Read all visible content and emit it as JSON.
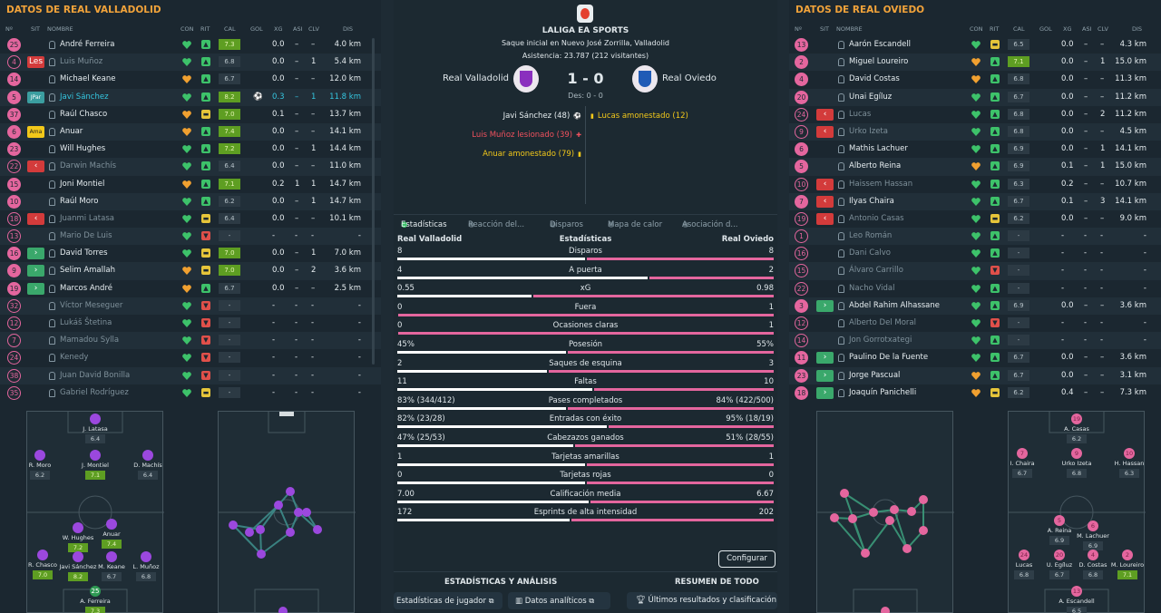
{
  "left": {
    "title": "DATOS DE REAL VALLADOLID",
    "headers": {
      "num": "Nº",
      "sit": "SIT",
      "name": "NOMBRE",
      "con": "CON",
      "rit": "RIT",
      "cal": "CAL",
      "gol": "GOL",
      "xg": "XG",
      "asi": "ASI",
      "clv": "CLV",
      "dis": "DIS"
    },
    "players": [
      {
        "num": "25",
        "sit": "",
        "name": "André Ferreira",
        "rit": "up",
        "cal": "7.3",
        "gol": "",
        "xg": "0.0",
        "asi": "–",
        "clv": "–",
        "dis": "4.0 km",
        "hl": true,
        "dim": false
      },
      {
        "num": "4",
        "sit": "Les",
        "name": "Luis Muñoz",
        "rit": "up",
        "cal": "6.8",
        "gol": "",
        "xg": "0.0",
        "asi": "–",
        "clv": "1",
        "dis": "5.4 km",
        "hl": false,
        "dim": true
      },
      {
        "num": "14",
        "sit": "",
        "name": "Michael Keane",
        "rit": "up",
        "cal": "6.7",
        "gol": "",
        "xg": "0.0",
        "asi": "–",
        "clv": "–",
        "dis": "12.0 km",
        "hl": false,
        "dim": false
      },
      {
        "num": "5",
        "sit": "JPar",
        "name": "Javi Sánchez",
        "rit": "up",
        "cal": "8.2",
        "gol": "⚽",
        "xg": "0.3",
        "asi": "–",
        "clv": "1",
        "dis": "11.8 km",
        "hl": true,
        "dim": false
      },
      {
        "num": "37",
        "sit": "",
        "name": "Raúl Chasco",
        "rit": "mid",
        "cal": "7.0",
        "gol": "",
        "xg": "0.1",
        "asi": "–",
        "clv": "–",
        "dis": "13.7 km",
        "hl": true,
        "dim": false
      },
      {
        "num": "6",
        "sit": "Ama",
        "name": "Anuar",
        "rit": "up",
        "cal": "7.4",
        "gol": "",
        "xg": "0.0",
        "asi": "–",
        "clv": "–",
        "dis": "14.1 km",
        "hl": true,
        "dim": false
      },
      {
        "num": "23",
        "sit": "",
        "name": "Will Hughes",
        "rit": "up",
        "cal": "7.2",
        "gol": "",
        "xg": "0.0",
        "asi": "–",
        "clv": "1",
        "dis": "14.4 km",
        "hl": true,
        "dim": false
      },
      {
        "num": "22",
        "sit": "out",
        "name": "Darwin Machís",
        "rit": "up",
        "cal": "6.4",
        "gol": "",
        "xg": "0.0",
        "asi": "–",
        "clv": "–",
        "dis": "11.0 km",
        "hl": false,
        "dim": true
      },
      {
        "num": "15",
        "sit": "",
        "name": "Joni Montiel",
        "rit": "up",
        "cal": "7.1",
        "gol": "",
        "xg": "0.2",
        "asi": "1",
        "clv": "1",
        "dis": "14.7 km",
        "hl": true,
        "dim": false
      },
      {
        "num": "10",
        "sit": "",
        "name": "Raúl Moro",
        "rit": "up",
        "cal": "6.2",
        "gol": "",
        "xg": "0.0",
        "asi": "–",
        "clv": "1",
        "dis": "14.7 km",
        "hl": false,
        "dim": false
      },
      {
        "num": "18",
        "sit": "out",
        "name": "Juanmi Latasa",
        "rit": "mid",
        "cal": "6.4",
        "gol": "",
        "xg": "0.0",
        "asi": "–",
        "clv": "–",
        "dis": "10.1 km",
        "hl": false,
        "dim": true
      },
      {
        "num": "13",
        "sit": "",
        "name": "Mario De Luis",
        "rit": "down",
        "cal": "-",
        "gol": "",
        "xg": "-",
        "asi": "-",
        "clv": "-",
        "dis": "-",
        "hl": false,
        "dim": true
      },
      {
        "num": "16",
        "sit": "in",
        "name": "David Torres",
        "rit": "mid",
        "cal": "7.0",
        "gol": "",
        "xg": "0.0",
        "asi": "–",
        "clv": "1",
        "dis": "7.0 km",
        "hl": true,
        "dim": false
      },
      {
        "num": "9",
        "sit": "in",
        "name": "Selim Amallah",
        "rit": "mid",
        "cal": "7.0",
        "gol": "",
        "xg": "0.0",
        "asi": "–",
        "clv": "2",
        "dis": "3.6 km",
        "hl": true,
        "dim": false
      },
      {
        "num": "19",
        "sit": "in",
        "name": "Marcos André",
        "rit": "up",
        "cal": "6.7",
        "gol": "",
        "xg": "0.0",
        "asi": "–",
        "clv": "–",
        "dis": "2.5 km",
        "hl": false,
        "dim": false
      },
      {
        "num": "32",
        "sit": "",
        "name": "Víctor Meseguer",
        "rit": "down",
        "cal": "-",
        "gol": "",
        "xg": "-",
        "asi": "-",
        "clv": "-",
        "dis": "-",
        "hl": false,
        "dim": true
      },
      {
        "num": "12",
        "sit": "",
        "name": "Lukáš Štetina",
        "rit": "down",
        "cal": "-",
        "gol": "",
        "xg": "-",
        "asi": "-",
        "clv": "-",
        "dis": "-",
        "hl": false,
        "dim": true
      },
      {
        "num": "7",
        "sit": "",
        "name": "Mamadou Sylla",
        "rit": "down",
        "cal": "-",
        "gol": "",
        "xg": "-",
        "asi": "-",
        "clv": "-",
        "dis": "-",
        "hl": false,
        "dim": true
      },
      {
        "num": "24",
        "sit": "",
        "name": "Kenedy",
        "rit": "down",
        "cal": "-",
        "gol": "",
        "xg": "-",
        "asi": "-",
        "clv": "-",
        "dis": "-",
        "hl": false,
        "dim": true
      },
      {
        "num": "38",
        "sit": "",
        "name": "Juan David Bonilla",
        "rit": "down",
        "cal": "-",
        "gol": "",
        "xg": "-",
        "asi": "-",
        "clv": "-",
        "dis": "-",
        "hl": false,
        "dim": true
      },
      {
        "num": "35",
        "sit": "",
        "name": "Gabriel Rodríguez",
        "rit": "mid",
        "cal": "-",
        "gol": "",
        "xg": "-",
        "asi": "-",
        "clv": "-",
        "dis": "-",
        "hl": false,
        "dim": true
      }
    ],
    "formation": [
      {
        "name": "J. Latasa",
        "rating": "6.4",
        "hi": false
      },
      {
        "name": "R. Moro",
        "rating": "6.2",
        "hi": false
      },
      {
        "name": "J. Montiel",
        "rating": "7.1",
        "hi": true
      },
      {
        "name": "D. Machís",
        "rating": "6.4",
        "hi": false
      },
      {
        "name": "W. Hughes",
        "rating": "7.2",
        "hi": true
      },
      {
        "name": "Anuar",
        "rating": "7.4",
        "hi": true
      },
      {
        "name": "R. Chasco",
        "rating": "7.0",
        "hi": true
      },
      {
        "name": "Javi Sánchez",
        "rating": "8.2",
        "hi": true
      },
      {
        "name": "M. Keane",
        "rating": "6.7",
        "hi": false
      },
      {
        "name": "L. Muñoz",
        "rating": "6.8",
        "hi": false
      },
      {
        "name": "A. Ferreira",
        "rating": "7.3",
        "hi": true,
        "num": "25"
      }
    ]
  },
  "center": {
    "competition": "LALIGA EA SPORTS",
    "kickoff": "Saque inicial en Nuevo José Zorrilla, Valladolid",
    "attendance": "Asistencia: 23.787 (212 visitantes)",
    "home": "Real Valladolid",
    "away": "Real Oviedo",
    "score": "1 - 0",
    "ht": "Des: 0 - 0",
    "events_home": [
      {
        "text": "Javi Sánchez (48)",
        "color": "#e6edf0",
        "icon": "⚽"
      },
      {
        "text": "Luis Muñoz lesionado (39)",
        "color": "#f0515e",
        "icon": "✚"
      },
      {
        "text": "Anuar amonestado (79)",
        "color": "#f2c81a",
        "icon": "▮"
      }
    ],
    "events_away": [
      {
        "text": "Lucas amonestado (12)",
        "color": "#f2c81a",
        "icon": "▮"
      }
    ],
    "tabs": [
      "Estadísticas",
      "Reacción del...",
      "Disparos",
      "Mapa de calor",
      "Asociación d..."
    ],
    "stats_header": {
      "home": "Real Valladolid",
      "title": "Estadísticas",
      "away": "Real Oviedo"
    },
    "stats": [
      {
        "label": "Disparos",
        "home": "8",
        "away": "8",
        "hf": 0.5
      },
      {
        "label": "A puerta",
        "home": "4",
        "away": "2",
        "hf": 0.667
      },
      {
        "label": "xG",
        "home": "0.55",
        "away": "0.98",
        "hf": 0.36
      },
      {
        "label": "Fuera",
        "home": "0",
        "away": "1",
        "hf": 0.0
      },
      {
        "label": "Ocasiones claras",
        "home": "0",
        "away": "1",
        "hf": 0.0
      },
      {
        "label": "Posesión",
        "home": "45%",
        "away": "55%",
        "hf": 0.45
      },
      {
        "label": "Saques de esquina",
        "home": "2",
        "away": "3",
        "hf": 0.4
      },
      {
        "label": "Faltas",
        "home": "11",
        "away": "10",
        "hf": 0.52
      },
      {
        "label": "Pases completados",
        "home": "83% (344/412)",
        "away": "84% (422/500)",
        "hf": 0.45
      },
      {
        "label": "Entradas con éxito",
        "home": "82% (23/28)",
        "away": "95% (18/19)",
        "hf": 0.56
      },
      {
        "label": "Cabezazos ganados",
        "home": "47% (25/53)",
        "away": "51% (28/55)",
        "hf": 0.47
      },
      {
        "label": "Tarjetas amarillas",
        "home": "1",
        "away": "1",
        "hf": 0.5
      },
      {
        "label": "Tarjetas rojas",
        "home": "0",
        "away": "0",
        "hf": 0.5
      },
      {
        "label": "Calificación media",
        "home": "7.00",
        "away": "6.67",
        "hf": 0.51
      },
      {
        "label": "Esprints de alta intensidad",
        "home": "172",
        "away": "202",
        "hf": 0.46
      }
    ],
    "configure": "Configurar",
    "section_left": "ESTADÍSTICAS Y ANÁLISIS",
    "section_right": "RESUMEN DE TODO",
    "btn_player": "Estadísticas de jugador",
    "btn_analytics": "Datos analíticos",
    "btn_results": "Últimos resultados y clasificación"
  },
  "right": {
    "title": "DATOS DE REAL OVIEDO",
    "headers": {
      "num": "Nº",
      "sit": "SIT",
      "name": "NOMBRE",
      "con": "CON",
      "rit": "RIT",
      "cal": "CAL",
      "gol": "GOL",
      "xg": "XG",
      "asi": "ASI",
      "clv": "CLV",
      "dis": "DIS"
    },
    "players": [
      {
        "num": "13",
        "sit": "",
        "name": "Aarón Escandell",
        "rit": "mid",
        "cal": "6.5",
        "xg": "0.0",
        "asi": "–",
        "clv": "–",
        "dis": "4.3 km",
        "hl": false,
        "dim": false
      },
      {
        "num": "2",
        "sit": "",
        "name": "Miguel Loureiro",
        "rit": "up",
        "cal": "7.1",
        "xg": "0.0",
        "asi": "–",
        "clv": "1",
        "dis": "15.0 km",
        "hl": true,
        "dim": false
      },
      {
        "num": "4",
        "sit": "",
        "name": "David Costas",
        "rit": "up",
        "cal": "6.8",
        "xg": "0.0",
        "asi": "–",
        "clv": "–",
        "dis": "11.3 km",
        "hl": false,
        "dim": false
      },
      {
        "num": "20",
        "sit": "",
        "name": "Unai Egíluz",
        "rit": "up",
        "cal": "6.7",
        "xg": "0.0",
        "asi": "–",
        "clv": "–",
        "dis": "11.2 km",
        "hl": false,
        "dim": false
      },
      {
        "num": "24",
        "sit": "out",
        "name": "Lucas",
        "rit": "up",
        "cal": "6.8",
        "xg": "0.0",
        "asi": "–",
        "clv": "2",
        "dis": "11.2 km",
        "hl": false,
        "dim": true
      },
      {
        "num": "9",
        "sit": "out",
        "name": "Urko Izeta",
        "rit": "up",
        "cal": "6.8",
        "xg": "0.0",
        "asi": "–",
        "clv": "–",
        "dis": "4.5 km",
        "hl": false,
        "dim": true
      },
      {
        "num": "6",
        "sit": "",
        "name": "Mathis Lachuer",
        "rit": "up",
        "cal": "6.9",
        "xg": "0.0",
        "asi": "–",
        "clv": "1",
        "dis": "14.1 km",
        "hl": false,
        "dim": false
      },
      {
        "num": "5",
        "sit": "",
        "name": "Alberto Reina",
        "rit": "up",
        "cal": "6.9",
        "xg": "0.1",
        "asi": "–",
        "clv": "1",
        "dis": "15.0 km",
        "hl": false,
        "dim": false
      },
      {
        "num": "10",
        "sit": "out",
        "name": "Haissem Hassan",
        "rit": "up",
        "cal": "6.3",
        "xg": "0.2",
        "asi": "–",
        "clv": "–",
        "dis": "10.7 km",
        "hl": false,
        "dim": true
      },
      {
        "num": "7",
        "sit": "out",
        "name": "Ilyas Chaira",
        "rit": "up",
        "cal": "6.7",
        "xg": "0.1",
        "asi": "–",
        "clv": "3",
        "dis": "14.1 km",
        "hl": false,
        "dim": false
      },
      {
        "num": "19",
        "sit": "out",
        "name": "Antonio Casas",
        "rit": "mid",
        "cal": "6.2",
        "xg": "0.0",
        "asi": "–",
        "clv": "–",
        "dis": "9.0 km",
        "hl": false,
        "dim": true
      },
      {
        "num": "1",
        "sit": "",
        "name": "Leo Román",
        "rit": "up",
        "cal": "-",
        "xg": "-",
        "asi": "-",
        "clv": "-",
        "dis": "-",
        "hl": false,
        "dim": true
      },
      {
        "num": "16",
        "sit": "",
        "name": "Dani Calvo",
        "rit": "up",
        "cal": "-",
        "xg": "-",
        "asi": "-",
        "clv": "-",
        "dis": "-",
        "hl": false,
        "dim": true
      },
      {
        "num": "15",
        "sit": "",
        "name": "Álvaro Carrillo",
        "rit": "down",
        "cal": "-",
        "xg": "-",
        "asi": "-",
        "clv": "-",
        "dis": "-",
        "hl": false,
        "dim": true
      },
      {
        "num": "22",
        "sit": "",
        "name": "Nacho Vidal",
        "rit": "up",
        "cal": "-",
        "xg": "-",
        "asi": "-",
        "clv": "-",
        "dis": "-",
        "hl": false,
        "dim": true
      },
      {
        "num": "3",
        "sit": "in",
        "name": "Abdel Rahim Alhassane",
        "rit": "up",
        "cal": "6.9",
        "xg": "0.0",
        "asi": "–",
        "clv": "–",
        "dis": "3.6 km",
        "hl": false,
        "dim": false
      },
      {
        "num": "12",
        "sit": "",
        "name": "Alberto Del Moral",
        "rit": "down",
        "cal": "-",
        "xg": "-",
        "asi": "-",
        "clv": "-",
        "dis": "-",
        "hl": false,
        "dim": true
      },
      {
        "num": "14",
        "sit": "",
        "name": "Jon Gorrotxategi",
        "rit": "up",
        "cal": "-",
        "xg": "-",
        "asi": "-",
        "clv": "-",
        "dis": "-",
        "hl": false,
        "dim": true
      },
      {
        "num": "11",
        "sit": "in",
        "name": "Paulino De la Fuente",
        "rit": "up",
        "cal": "6.7",
        "xg": "0.0",
        "asi": "–",
        "clv": "–",
        "dis": "3.6 km",
        "hl": false,
        "dim": false
      },
      {
        "num": "23",
        "sit": "in",
        "name": "Jorge Pascual",
        "rit": "up",
        "cal": "6.7",
        "xg": "0.0",
        "asi": "–",
        "clv": "–",
        "dis": "3.1 km",
        "hl": false,
        "dim": false
      },
      {
        "num": "18",
        "sit": "in",
        "name": "Joaquín Panichelli",
        "rit": "mid",
        "cal": "6.2",
        "xg": "0.4",
        "asi": "–",
        "clv": "–",
        "dis": "7.3 km",
        "hl": false,
        "dim": false
      }
    ],
    "formation": [
      {
        "name": "A. Casas",
        "rating": "6.2",
        "hi": false,
        "num": "19"
      },
      {
        "name": "I. Chaira",
        "rating": "6.7",
        "hi": false,
        "num": "7"
      },
      {
        "name": "Urko Izeta",
        "rating": "6.8",
        "hi": false,
        "num": "9"
      },
      {
        "name": "H. Hassan",
        "rating": "6.3",
        "hi": false,
        "num": "10"
      },
      {
        "name": "A. Reina",
        "rating": "6.9",
        "hi": false,
        "num": "5"
      },
      {
        "name": "M. Lachuer",
        "rating": "6.9",
        "hi": false,
        "num": "6"
      },
      {
        "name": "Lucas",
        "rating": "6.8",
        "hi": false,
        "num": "24"
      },
      {
        "name": "U. Egíluz",
        "rating": "6.7",
        "hi": false,
        "num": "20"
      },
      {
        "name": "D. Costas",
        "rating": "6.8",
        "hi": false,
        "num": "4"
      },
      {
        "name": "M. Loureiro",
        "rating": "7.1",
        "hi": true,
        "num": "2"
      },
      {
        "name": "A. Escandell",
        "rating": "6.5",
        "hi": false,
        "num": "13"
      }
    ]
  },
  "colors": {
    "accent": "#f2a33a",
    "home": "#9b48de",
    "away": "#e4669e",
    "good": "#5e9e22"
  }
}
